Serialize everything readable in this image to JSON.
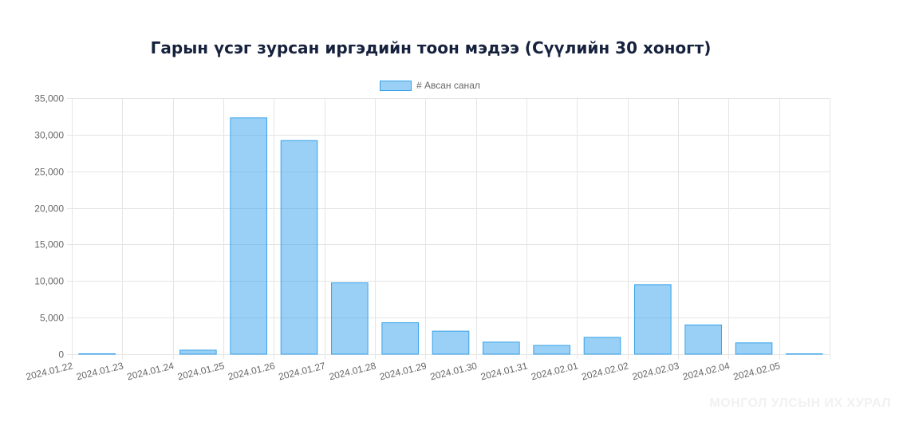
{
  "chart_data": {
    "type": "bar",
    "title": "Гарын үсэг зурсан иргэдийн тоон мэдээ (Сүүлийн 30 хоногт)",
    "categories": [
      "2024.01.22",
      "2024.01.23",
      "2024.01.24",
      "2024.01.25",
      "2024.01.26",
      "2024.01.27",
      "2024.01.28",
      "2024.01.29",
      "2024.01.30",
      "2024.01.31",
      "2024.02.01",
      "2024.02.02",
      "2024.02.03",
      "2024.02.04",
      "2024.02.05"
    ],
    "series": [
      {
        "name": "# Авсан санал",
        "values": [
          60,
          0,
          550,
          32300,
          29200,
          9750,
          4300,
          3150,
          1650,
          1200,
          2300,
          9500,
          4000,
          1550,
          50
        ]
      }
    ],
    "ylim": [
      0,
      35000
    ],
    "yticks": [
      "0",
      "5,000",
      "10,000",
      "15,000",
      "20,000",
      "25,000",
      "30,000",
      "35,000"
    ],
    "grid": true,
    "legend_position": "top",
    "colors": {
      "bar_fill": "rgba(54,162,235,0.5)",
      "bar_border": "#36a2eb",
      "grid": "#e5e5e5"
    }
  },
  "watermark": "МОНГОЛ УЛСЫН ИХ ХУРАЛ"
}
